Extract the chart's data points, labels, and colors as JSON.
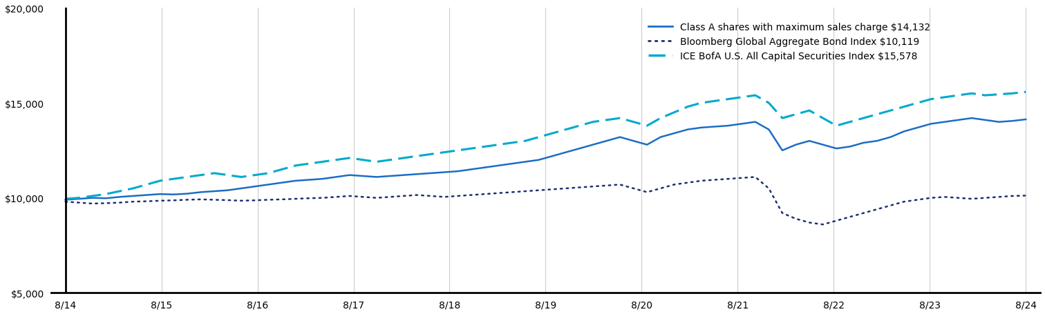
{
  "x_labels": [
    "8/14",
    "8/15",
    "8/16",
    "8/17",
    "8/18",
    "8/19",
    "8/20",
    "8/21",
    "8/22",
    "8/23",
    "8/24"
  ],
  "ylim": [
    5000,
    20000
  ],
  "yticks": [
    5000,
    10000,
    15000,
    20000
  ],
  "class_a": [
    9900,
    9950,
    10000,
    9980,
    10050,
    10100,
    10150,
    10200,
    10180,
    10220,
    10300,
    10350,
    10400,
    10500,
    10600,
    10700,
    10800,
    10900,
    10950,
    11000,
    11100,
    11200,
    11150,
    11100,
    11150,
    11200,
    11250,
    11300,
    11350,
    11400,
    11500,
    11600,
    11700,
    11800,
    11900,
    12000,
    12200,
    12400,
    12600,
    12800,
    13000,
    13200,
    13000,
    12800,
    13200,
    13400,
    13600,
    13700,
    13750,
    13800,
    13900,
    14000,
    13600,
    12500,
    12800,
    13000,
    12800,
    12600,
    12700,
    12900,
    13000,
    13200,
    13500,
    13700,
    13900,
    14000,
    14100,
    14200,
    14100,
    14000,
    14050,
    14132
  ],
  "bloomberg": [
    9800,
    9750,
    9700,
    9720,
    9750,
    9800,
    9820,
    9850,
    9870,
    9900,
    9920,
    9900,
    9880,
    9850,
    9870,
    9900,
    9920,
    9950,
    9980,
    10000,
    10050,
    10100,
    10050,
    10000,
    10050,
    10100,
    10150,
    10100,
    10050,
    10100,
    10150,
    10200,
    10250,
    10300,
    10350,
    10400,
    10450,
    10500,
    10550,
    10600,
    10650,
    10700,
    10500,
    10300,
    10500,
    10700,
    10800,
    10900,
    10950,
    11000,
    11050,
    11100,
    10500,
    9200,
    8900,
    8700,
    8600,
    8800,
    9000,
    9200,
    9400,
    9600,
    9800,
    9900,
    10000,
    10050,
    10000,
    9950,
    10000,
    10050,
    10100,
    10119
  ],
  "ice_bofa": [
    9950,
    10000,
    10100,
    10200,
    10350,
    10500,
    10700,
    10900,
    11000,
    11100,
    11200,
    11300,
    11200,
    11100,
    11200,
    11300,
    11500,
    11700,
    11800,
    11900,
    12000,
    12100,
    12000,
    11900,
    12000,
    12100,
    12200,
    12300,
    12400,
    12500,
    12600,
    12700,
    12800,
    12900,
    13000,
    13200,
    13400,
    13600,
    13800,
    14000,
    14100,
    14200,
    14000,
    13800,
    14200,
    14500,
    14800,
    15000,
    15100,
    15200,
    15300,
    15400,
    15000,
    14200,
    14400,
    14600,
    14200,
    13800,
    14000,
    14200,
    14400,
    14600,
    14800,
    15000,
    15200,
    15300,
    15400,
    15500,
    15400,
    15450,
    15500,
    15578
  ],
  "class_a_color": "#1B6DC4",
  "bloomberg_color": "#1B2F70",
  "ice_bofa_color": "#00AACC",
  "background_color": "#FFFFFF",
  "grid_color": "#CCCCCC",
  "legend_labels": [
    "Class A shares with maximum sales charge $14,132",
    "Bloomberg Global Aggregate Bond Index $10,119",
    "ICE BofA U.S. All Capital Securities Index $15,578"
  ]
}
